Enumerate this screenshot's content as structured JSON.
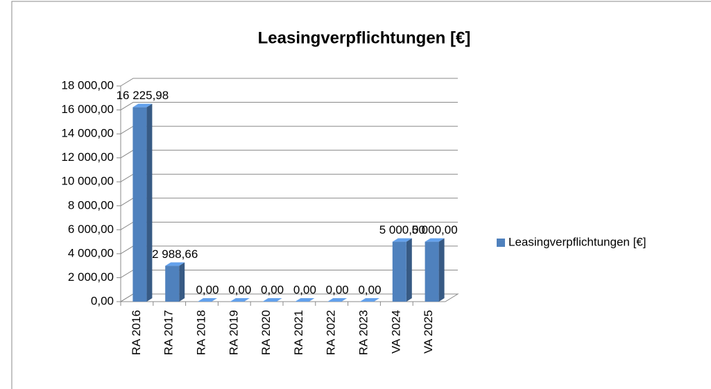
{
  "chart_data": {
    "type": "bar3d",
    "title": "Leasingverpflichtungen [€]",
    "categories": [
      "RA 2016",
      "RA 2017",
      "RA 2018",
      "RA 2019",
      "RA 2020",
      "RA 2021",
      "RA 2022",
      "RA 2023",
      "VA 2024",
      "VA 2025"
    ],
    "series": [
      {
        "name": "Leasingverpflichtungen [€]",
        "color": "#4f81bd",
        "values": [
          16225.98,
          2988.66,
          0,
          0,
          0,
          0,
          0,
          0,
          5000,
          5000
        ],
        "value_labels": [
          "16 225,98",
          "2 988,66",
          "0,00",
          "0,00",
          "0,00",
          "0,00",
          "0,00",
          "0,00",
          "5 000,00",
          "5 000,00"
        ]
      }
    ],
    "ylim": [
      0,
      18000
    ],
    "yticks": [
      {
        "value": 0,
        "label": "0,00"
      },
      {
        "value": 2000,
        "label": "2 000,00"
      },
      {
        "value": 4000,
        "label": "4 000,00"
      },
      {
        "value": 6000,
        "label": "6 000,00"
      },
      {
        "value": 8000,
        "label": "8 000,00"
      },
      {
        "value": 10000,
        "label": "10 000,00"
      },
      {
        "value": 12000,
        "label": "12 000,00"
      },
      {
        "value": 14000,
        "label": "14 000,00"
      },
      {
        "value": 16000,
        "label": "16 000,00"
      },
      {
        "value": 18000,
        "label": "18 000,00"
      }
    ],
    "grid": true,
    "legend": "right"
  }
}
